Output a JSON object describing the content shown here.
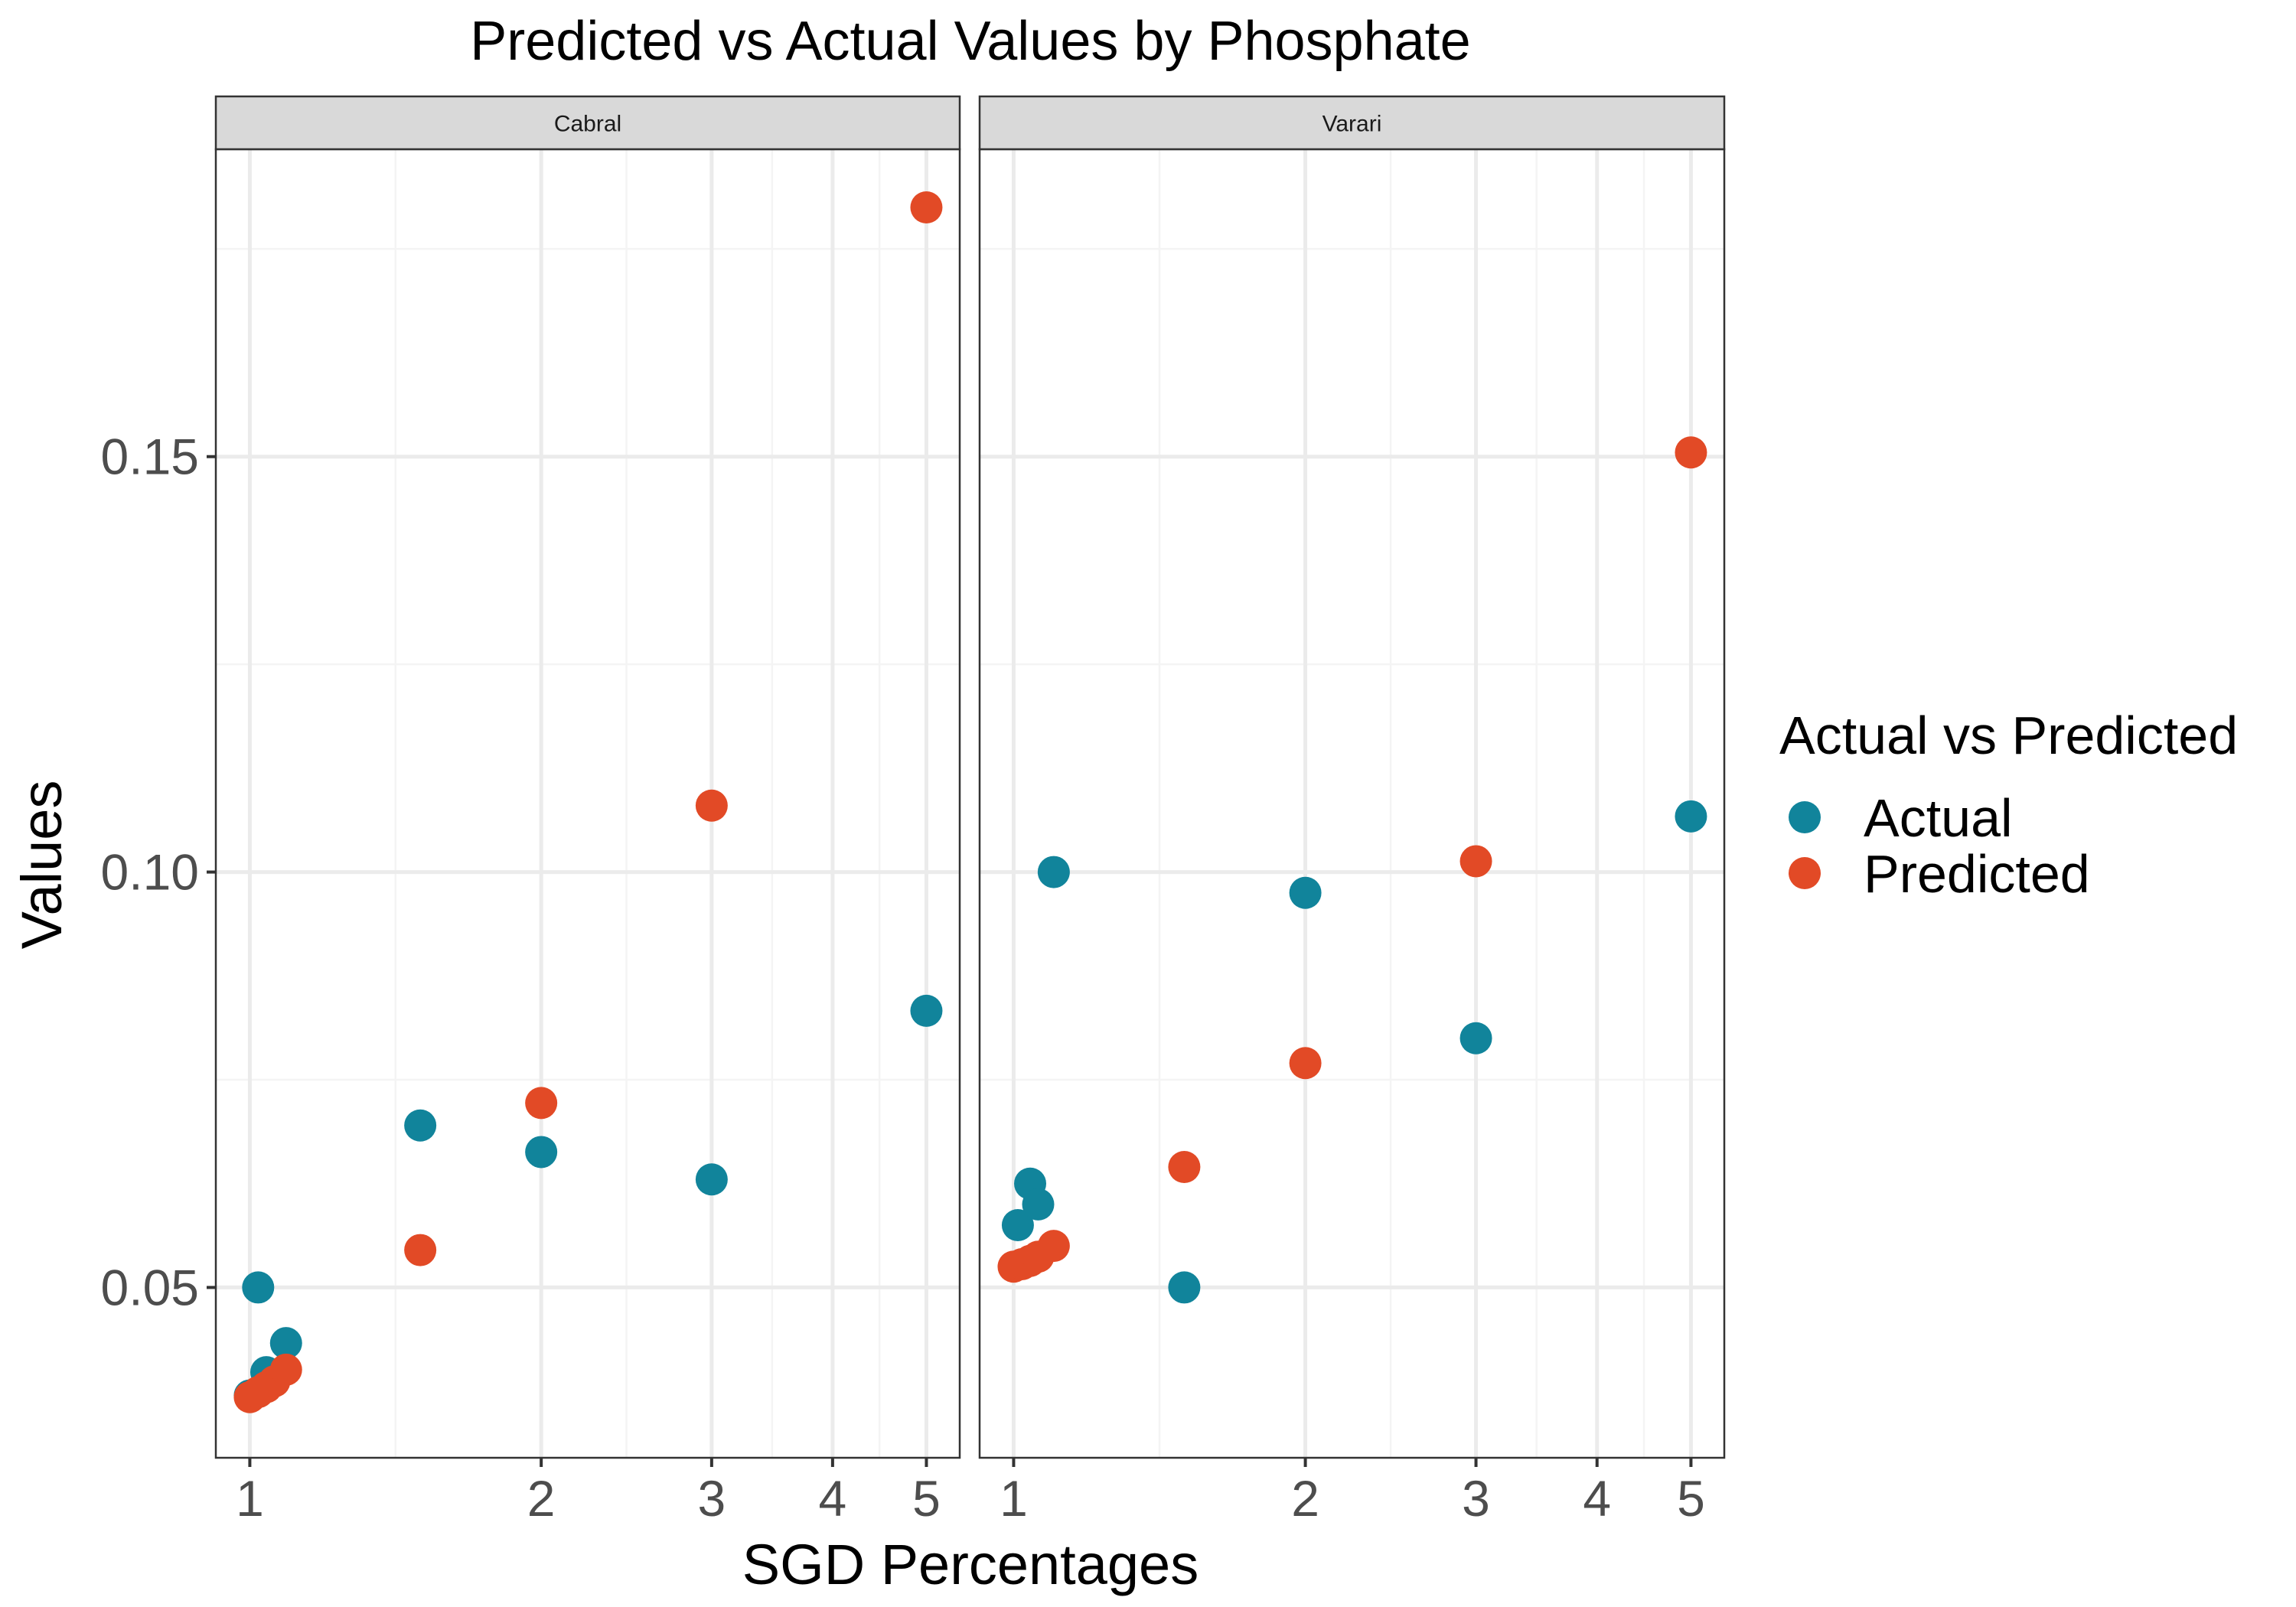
{
  "chart_data": {
    "type": "scatter",
    "title": "Predicted vs Actual Values by Phosphate",
    "xlabel": "SGD Percentages",
    "ylabel": "Values",
    "x_scale": "log",
    "x_ticks": [
      1,
      2,
      3,
      4,
      5
    ],
    "x_tick_labels": [
      "1",
      "2",
      "3",
      "4",
      "5"
    ],
    "xlim": [
      0.96,
      5.2
    ],
    "y_ticks": [
      0.05,
      0.1,
      0.15
    ],
    "y_tick_labels": [
      "0.05",
      "0.10",
      "0.15"
    ],
    "ylim": [
      0.0295,
      0.187
    ],
    "grid": true,
    "legend": {
      "title": "Actual vs Predicted",
      "placement": "right",
      "entries": [
        {
          "label": "Actual",
          "color": "#11849b"
        },
        {
          "label": "Predicted",
          "color": "#e24a26"
        }
      ]
    },
    "facets": [
      {
        "label": "Cabral",
        "series": [
          {
            "name": "Actual",
            "color": "#11849b",
            "x": [
              1.0,
              1.02,
              1.04,
              1.09,
              1.5,
              2.0,
              3.0,
              5.0
            ],
            "y": [
              0.037,
              0.05,
              0.0398,
              0.0433,
              0.0695,
              0.0663,
              0.063,
              0.0833
            ]
          },
          {
            "name": "Predicted",
            "color": "#e24a26",
            "x": [
              1.0,
              1.02,
              1.04,
              1.06,
              1.09,
              1.5,
              2.0,
              3.0,
              5.0
            ],
            "y": [
              0.0368,
              0.0374,
              0.038,
              0.0387,
              0.0401,
              0.0545,
              0.0722,
              0.108,
              0.18
            ]
          }
        ]
      },
      {
        "label": "Varari",
        "series": [
          {
            "name": "Actual",
            "color": "#11849b",
            "x": [
              1.01,
              1.04,
              1.06,
              1.1,
              1.5,
              2.0,
              3.0,
              5.0
            ],
            "y": [
              0.0575,
              0.0625,
              0.06,
              0.1,
              0.05,
              0.0975,
              0.08,
              0.1067
            ]
          },
          {
            "name": "Predicted",
            "color": "#e24a26",
            "x": [
              1.0,
              1.02,
              1.04,
              1.06,
              1.1,
              1.5,
              2.0,
              3.0,
              5.0
            ],
            "y": [
              0.0525,
              0.0528,
              0.0532,
              0.0537,
              0.055,
              0.0645,
              0.077,
              0.1013,
              0.1505
            ]
          }
        ]
      }
    ]
  }
}
